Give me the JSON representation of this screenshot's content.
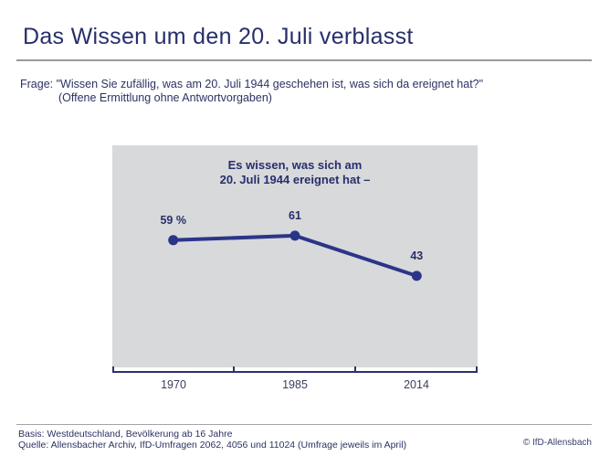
{
  "header": {
    "title": "Das Wissen um den 20. Juli verblasst"
  },
  "question": {
    "line1": "Frage: \"Wissen Sie zufällig, was am 20. Juli 1944 geschehen ist, was sich da ereignet hat?\"",
    "line2": "(Offene Ermittlung ohne Antwortvorgaben)"
  },
  "chart": {
    "title_line1": "Es wissen, was sich am",
    "title_line2": "20. Juli 1944 ereignet hat –"
  },
  "chart_data": {
    "type": "line",
    "title": "Es wissen, was sich am 20. Juli 1944 ereignet hat –",
    "categories": [
      "1970",
      "1985",
      "2014"
    ],
    "values": [
      59,
      61,
      43
    ],
    "data_labels": [
      "59 %",
      "61",
      "43"
    ],
    "unit": "%",
    "y_axis_shown": false,
    "gridlines": false,
    "legend": "none",
    "plot_background": "#d8d9db"
  },
  "footer": {
    "basis": "Basis: Westdeutschland, Bevölkerung ab 16 Jahre",
    "quelle": "Quelle: Allensbacher Archiv, IfD-Umfragen 2062, 4056 und 11024 (Umfrage jeweils im April)",
    "copyright": "© IfD-Allensbach"
  },
  "colors": {
    "navy_text": "#272f6b",
    "line": "#2b3588",
    "axis": "#2b3270",
    "plot_bg": "#d8d9db"
  }
}
